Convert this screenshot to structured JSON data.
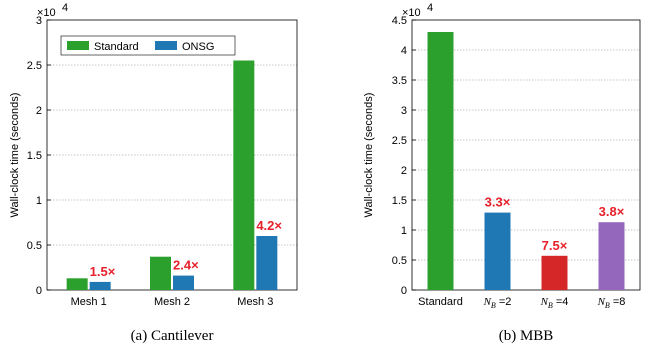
{
  "chart_data": [
    {
      "type": "bar",
      "caption": "(a)  Cantilever",
      "ylabel": "Wall-clock time (seconds)",
      "scale_label": "×10",
      "scale_exp": "4",
      "categories": [
        "Mesh 1",
        "Mesh 2",
        "Mesh 3"
      ],
      "ylim": [
        0,
        3
      ],
      "yticks": [
        "0",
        "0.5",
        "1",
        "1.5",
        "2",
        "2.5",
        "3"
      ],
      "legend_position": "top-left",
      "grid": "horizontal dotted",
      "series": [
        {
          "name": "Standard",
          "color": "#2ca02c",
          "values": [
            0.13,
            0.37,
            2.55
          ]
        },
        {
          "name": "ONSG",
          "color": "#1f77b4",
          "values": [
            0.09,
            0.16,
            0.6
          ]
        }
      ],
      "annotations": [
        "1.5×",
        "2.4×",
        "4.2×"
      ]
    },
    {
      "type": "bar",
      "caption": "(b)  MBB",
      "ylabel": "Wall-clock time (seconds)",
      "scale_label": "×10",
      "scale_exp": "4",
      "categories": [
        {
          "main": "Standard",
          "sub": ""
        },
        {
          "main": "N",
          "sub": "B",
          "suffix": " =2"
        },
        {
          "main": "N",
          "sub": "B",
          "suffix": " =4"
        },
        {
          "main": "N",
          "sub": "B",
          "suffix": " =8"
        }
      ],
      "ylim": [
        0,
        4.5
      ],
      "yticks": [
        "0",
        "0.5",
        "1",
        "1.5",
        "2",
        "2.5",
        "3",
        "3.5",
        "4",
        "4.5"
      ],
      "grid": "horizontal dotted",
      "values": [
        4.3,
        1.29,
        0.57,
        1.13
      ],
      "colors": [
        "#2ca02c",
        "#1f77b4",
        "#d62728",
        "#9467bd"
      ],
      "annotations": [
        "",
        "3.3×",
        "7.5×",
        "3.8×"
      ]
    }
  ]
}
